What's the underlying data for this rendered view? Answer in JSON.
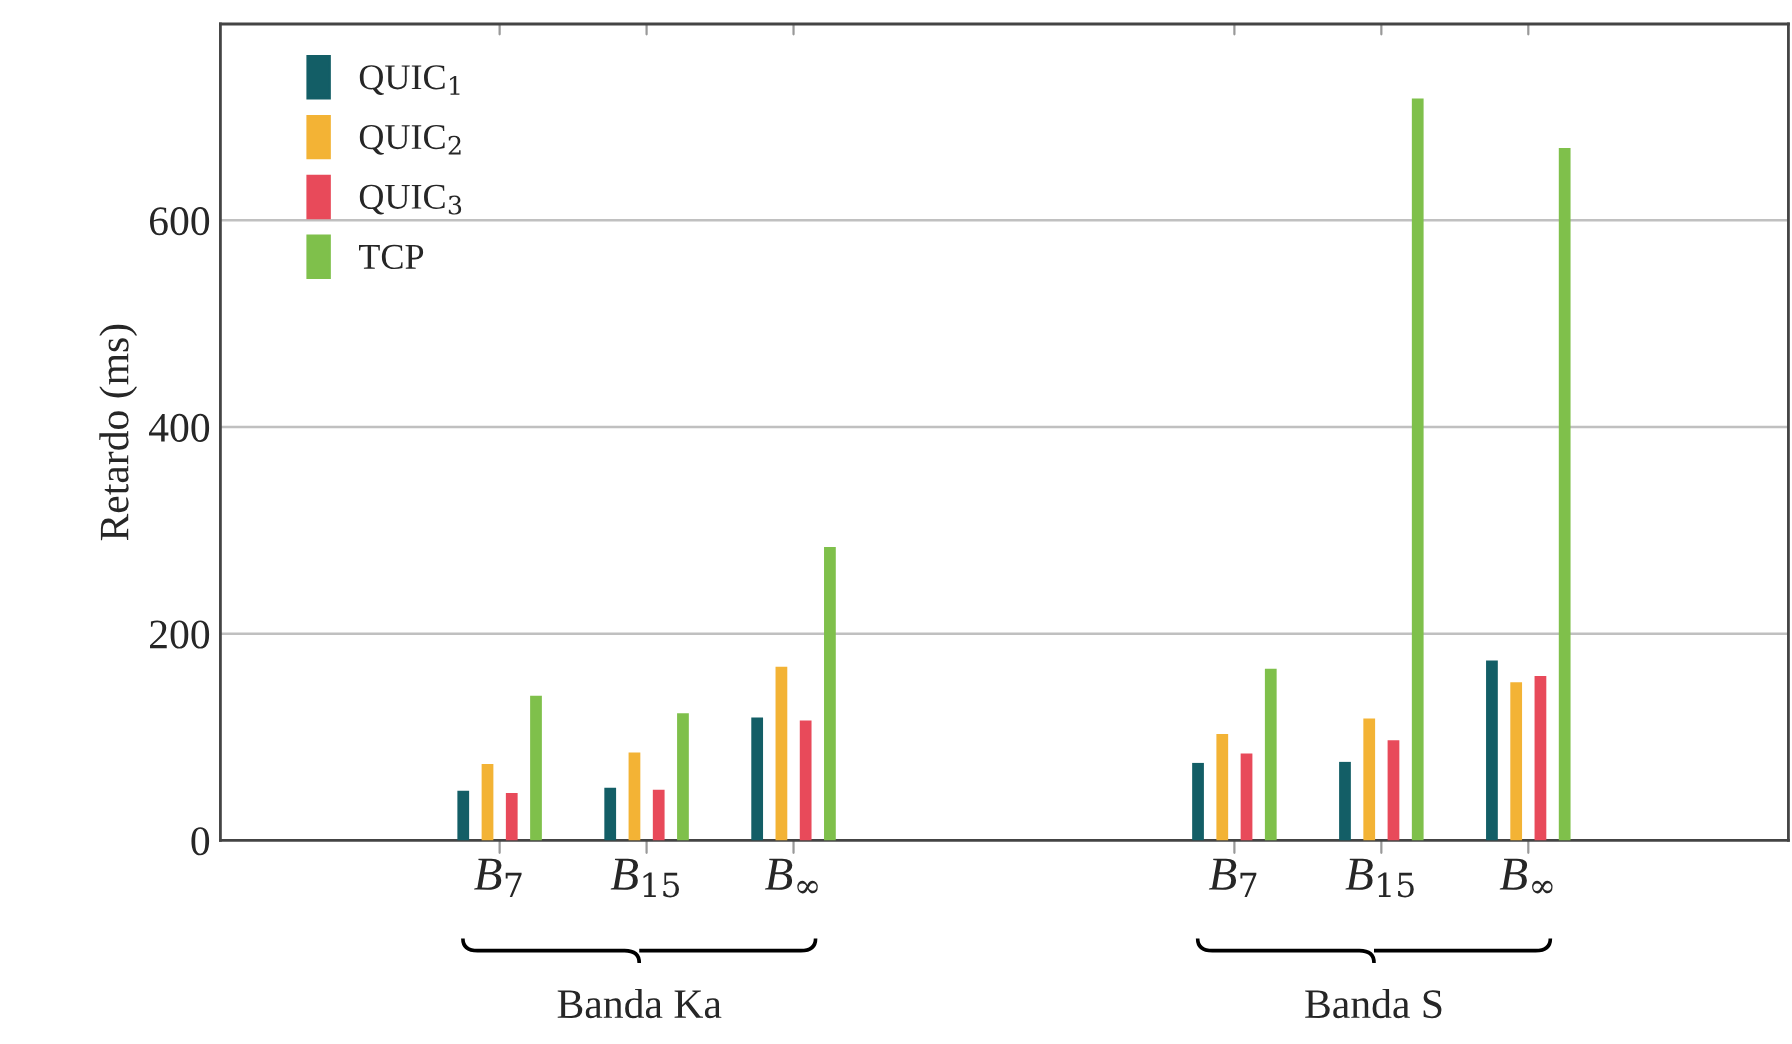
{
  "chart_data": {
    "type": "bar",
    "ylabel": "Retardo (ms)",
    "categories": [
      "B$_{7}$",
      "B$_{15}$",
      "B$_{∞}$",
      null,
      null,
      "B$_{7}$",
      "B$_{15}$",
      "B$_{∞}$"
    ],
    "series": [
      {
        "name": "QUIC$_{1}$",
        "color": "#135e66",
        "values": [
          48,
          51,
          119,
          null,
          null,
          75,
          76,
          174
        ]
      },
      {
        "name": "QUIC$_{2}$",
        "color": "#f3b335",
        "values": [
          74,
          85,
          168,
          null,
          null,
          103,
          118,
          153
        ]
      },
      {
        "name": "QUIC$_{3}$",
        "color": "#e84a5a",
        "values": [
          46,
          49,
          116,
          null,
          null,
          84,
          97,
          159
        ]
      },
      {
        "name": "TCP",
        "color": "#7fc04b",
        "values": [
          140,
          123,
          284,
          null,
          null,
          166,
          718,
          670
        ]
      }
    ],
    "ylim": [
      0,
      790
    ],
    "yticks": [
      0,
      200,
      400,
      600
    ],
    "grid": "y",
    "legend": "top left",
    "annotations": [
      "Banda Ka",
      "Banda S"
    ]
  }
}
